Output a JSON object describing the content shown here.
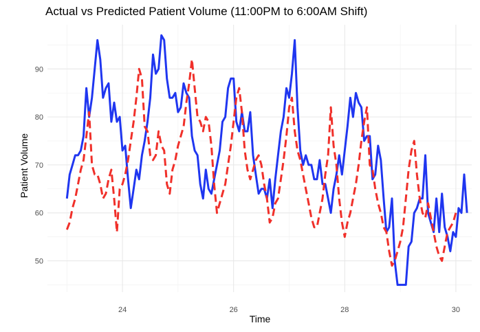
{
  "chart_data": {
    "type": "line",
    "title": "Actual vs Predicted Patient Volume (11:00PM to 6:00AM Shift)",
    "xlabel": "Time",
    "ylabel": "Patient Volume",
    "xlim": [
      22.7,
      30.2
    ],
    "ylim": [
      42.5,
      97.5
    ],
    "x_ticks": [
      24,
      26,
      28,
      30
    ],
    "y_ticks": [
      50,
      60,
      70,
      80,
      90
    ],
    "grid": true,
    "legend": "none",
    "series": [
      {
        "color": "#1f36f0",
        "style": "solid",
        "points": [
          [
            23.0,
            63
          ],
          [
            23.05,
            68
          ],
          [
            23.1,
            70
          ],
          [
            23.15,
            72
          ],
          [
            23.2,
            72
          ],
          [
            23.25,
            73
          ],
          [
            23.3,
            76
          ],
          [
            23.35,
            86
          ],
          [
            23.4,
            80
          ],
          [
            23.45,
            84
          ],
          [
            23.5,
            90
          ],
          [
            23.55,
            96
          ],
          [
            23.6,
            92
          ],
          [
            23.65,
            84
          ],
          [
            23.7,
            86
          ],
          [
            23.75,
            87
          ],
          [
            23.8,
            79
          ],
          [
            23.85,
            83
          ],
          [
            23.9,
            79
          ],
          [
            23.95,
            80
          ],
          [
            24.0,
            73
          ],
          [
            24.05,
            74
          ],
          [
            24.1,
            67
          ],
          [
            24.15,
            61
          ],
          [
            24.2,
            65
          ],
          [
            24.25,
            69
          ],
          [
            24.3,
            67
          ],
          [
            24.35,
            72
          ],
          [
            24.4,
            75
          ],
          [
            24.45,
            79
          ],
          [
            24.5,
            84
          ],
          [
            24.55,
            93
          ],
          [
            24.6,
            89
          ],
          [
            24.65,
            90
          ],
          [
            24.7,
            97
          ],
          [
            24.75,
            96
          ],
          [
            24.8,
            88
          ],
          [
            24.85,
            84
          ],
          [
            24.9,
            84
          ],
          [
            24.95,
            85
          ],
          [
            25.0,
            81
          ],
          [
            25.05,
            82
          ],
          [
            25.1,
            87
          ],
          [
            25.15,
            85
          ],
          [
            25.2,
            84
          ],
          [
            25.25,
            76
          ],
          [
            25.3,
            73
          ],
          [
            25.35,
            72
          ],
          [
            25.4,
            66
          ],
          [
            25.45,
            63
          ],
          [
            25.5,
            69
          ],
          [
            25.55,
            65
          ],
          [
            25.6,
            64
          ],
          [
            25.65,
            67
          ],
          [
            25.7,
            70
          ],
          [
            25.75,
            73
          ],
          [
            25.8,
            79
          ],
          [
            25.85,
            80
          ],
          [
            25.9,
            86
          ],
          [
            25.95,
            88
          ],
          [
            26.0,
            88
          ],
          [
            26.05,
            79
          ],
          [
            26.1,
            77
          ],
          [
            26.15,
            81
          ],
          [
            26.2,
            77
          ],
          [
            26.25,
            77
          ],
          [
            26.3,
            81
          ],
          [
            26.35,
            72
          ],
          [
            26.4,
            68
          ],
          [
            26.45,
            64
          ],
          [
            26.5,
            65
          ],
          [
            26.55,
            65
          ],
          [
            26.6,
            63
          ],
          [
            26.65,
            67
          ],
          [
            26.7,
            61
          ],
          [
            26.75,
            67
          ],
          [
            26.8,
            72
          ],
          [
            26.85,
            77
          ],
          [
            26.9,
            80
          ],
          [
            26.95,
            86
          ],
          [
            27.0,
            84
          ],
          [
            27.05,
            89
          ],
          [
            27.1,
            96
          ],
          [
            27.15,
            82
          ],
          [
            27.2,
            73
          ],
          [
            27.25,
            70
          ],
          [
            27.3,
            72
          ],
          [
            27.35,
            70
          ],
          [
            27.4,
            70
          ],
          [
            27.45,
            67
          ],
          [
            27.5,
            67
          ],
          [
            27.55,
            71
          ],
          [
            27.6,
            66
          ],
          [
            27.65,
            66
          ],
          [
            27.7,
            63
          ],
          [
            27.75,
            60
          ],
          [
            27.8,
            65
          ],
          [
            27.85,
            68
          ],
          [
            27.9,
            72
          ],
          [
            27.95,
            68
          ],
          [
            28.0,
            73
          ],
          [
            28.05,
            78
          ],
          [
            28.1,
            84
          ],
          [
            28.15,
            80
          ],
          [
            28.2,
            85
          ],
          [
            28.25,
            83
          ],
          [
            28.3,
            82
          ],
          [
            28.35,
            75
          ],
          [
            28.4,
            76
          ],
          [
            28.45,
            76
          ],
          [
            28.5,
            67
          ],
          [
            28.55,
            68
          ],
          [
            28.6,
            74
          ],
          [
            28.65,
            71
          ],
          [
            28.7,
            63
          ],
          [
            28.75,
            56
          ],
          [
            28.8,
            57
          ],
          [
            28.85,
            63
          ],
          [
            28.9,
            50
          ],
          [
            28.95,
            45
          ],
          [
            29.0,
            45
          ],
          [
            29.05,
            45
          ],
          [
            29.1,
            45
          ],
          [
            29.15,
            53
          ],
          [
            29.2,
            54
          ],
          [
            29.25,
            60
          ],
          [
            29.3,
            61
          ],
          [
            29.35,
            63
          ],
          [
            29.4,
            63
          ],
          [
            29.45,
            72
          ],
          [
            29.5,
            60
          ],
          [
            29.55,
            58
          ],
          [
            29.6,
            56
          ],
          [
            29.65,
            63
          ],
          [
            29.7,
            56
          ],
          [
            29.75,
            64
          ],
          [
            29.8,
            57
          ],
          [
            29.85,
            55
          ],
          [
            29.9,
            52
          ],
          [
            29.95,
            56
          ],
          [
            30.0,
            55
          ],
          [
            30.05,
            61
          ],
          [
            30.1,
            60
          ],
          [
            30.15,
            68
          ],
          [
            30.2,
            60
          ]
        ]
      },
      {
        "color": "#f0302a",
        "style": "dashed",
        "points": [
          [
            23.0,
            56.5
          ],
          [
            23.05,
            58
          ],
          [
            23.1,
            61
          ],
          [
            23.15,
            63
          ],
          [
            23.2,
            66
          ],
          [
            23.25,
            69
          ],
          [
            23.3,
            71
          ],
          [
            23.35,
            76
          ],
          [
            23.4,
            81
          ],
          [
            23.45,
            70
          ],
          [
            23.5,
            68
          ],
          [
            23.55,
            68
          ],
          [
            23.6,
            66
          ],
          [
            23.65,
            63
          ],
          [
            23.7,
            64
          ],
          [
            23.75,
            67
          ],
          [
            23.8,
            69
          ],
          [
            23.85,
            63
          ],
          [
            23.9,
            56
          ],
          [
            23.95,
            65
          ],
          [
            24.0,
            66
          ],
          [
            24.05,
            68
          ],
          [
            24.1,
            71
          ],
          [
            24.15,
            75
          ],
          [
            24.2,
            79
          ],
          [
            24.25,
            84
          ],
          [
            24.3,
            90
          ],
          [
            24.35,
            88
          ],
          [
            24.4,
            78
          ],
          [
            24.45,
            77
          ],
          [
            24.5,
            72
          ],
          [
            24.55,
            71
          ],
          [
            24.6,
            72
          ],
          [
            24.65,
            77
          ],
          [
            24.7,
            74
          ],
          [
            24.75,
            73
          ],
          [
            24.8,
            66
          ],
          [
            24.85,
            64
          ],
          [
            24.9,
            69
          ],
          [
            24.95,
            71
          ],
          [
            25.0,
            74
          ],
          [
            25.05,
            76
          ],
          [
            25.1,
            78
          ],
          [
            25.15,
            83
          ],
          [
            25.2,
            87
          ],
          [
            25.25,
            92
          ],
          [
            25.3,
            86
          ],
          [
            25.35,
            80
          ],
          [
            25.4,
            79
          ],
          [
            25.45,
            77
          ],
          [
            25.5,
            80
          ],
          [
            25.55,
            79
          ],
          [
            25.6,
            74
          ],
          [
            25.65,
            66
          ],
          [
            25.7,
            60
          ],
          [
            25.75,
            62
          ],
          [
            25.8,
            64
          ],
          [
            25.85,
            66
          ],
          [
            25.9,
            70
          ],
          [
            25.95,
            74
          ],
          [
            26.0,
            79
          ],
          [
            26.05,
            84
          ],
          [
            26.1,
            86
          ],
          [
            26.15,
            81
          ],
          [
            26.2,
            73
          ],
          [
            26.25,
            69
          ],
          [
            26.3,
            67
          ],
          [
            26.35,
            69
          ],
          [
            26.4,
            71
          ],
          [
            26.45,
            72
          ],
          [
            26.5,
            70
          ],
          [
            26.55,
            66
          ],
          [
            26.6,
            63
          ],
          [
            26.65,
            58
          ],
          [
            26.7,
            59
          ],
          [
            26.75,
            62
          ],
          [
            26.8,
            63
          ],
          [
            26.85,
            67
          ],
          [
            26.9,
            71
          ],
          [
            26.95,
            76
          ],
          [
            27.0,
            82
          ],
          [
            27.05,
            84
          ],
          [
            27.1,
            77
          ],
          [
            27.15,
            73
          ],
          [
            27.2,
            71
          ],
          [
            27.25,
            68
          ],
          [
            27.3,
            65
          ],
          [
            27.35,
            62
          ],
          [
            27.4,
            59
          ],
          [
            27.45,
            57
          ],
          [
            27.5,
            57
          ],
          [
            27.55,
            60
          ],
          [
            27.6,
            63
          ],
          [
            27.65,
            68
          ],
          [
            27.7,
            72
          ],
          [
            27.75,
            82
          ],
          [
            27.8,
            74
          ],
          [
            27.85,
            70
          ],
          [
            27.9,
            63
          ],
          [
            27.95,
            58
          ],
          [
            28.0,
            55
          ],
          [
            28.05,
            58
          ],
          [
            28.1,
            60
          ],
          [
            28.15,
            63
          ],
          [
            28.2,
            66
          ],
          [
            28.25,
            70
          ],
          [
            28.3,
            75
          ],
          [
            28.35,
            79
          ],
          [
            28.4,
            82
          ],
          [
            28.45,
            70
          ],
          [
            28.5,
            69
          ],
          [
            28.55,
            65
          ],
          [
            28.6,
            62
          ],
          [
            28.65,
            60
          ],
          [
            28.7,
            57
          ],
          [
            28.75,
            56
          ],
          [
            28.8,
            52
          ],
          [
            28.85,
            49
          ],
          [
            28.9,
            50
          ],
          [
            28.95,
            52
          ],
          [
            29.0,
            54
          ],
          [
            29.05,
            57
          ],
          [
            29.1,
            63
          ],
          [
            29.15,
            69
          ],
          [
            29.2,
            73
          ],
          [
            29.25,
            75
          ],
          [
            29.3,
            68
          ],
          [
            29.35,
            63
          ],
          [
            29.4,
            60
          ],
          [
            29.45,
            59
          ],
          [
            29.5,
            62
          ],
          [
            29.55,
            59
          ],
          [
            29.6,
            56
          ],
          [
            29.65,
            53
          ],
          [
            29.7,
            51
          ],
          [
            29.75,
            50
          ],
          [
            29.8,
            53
          ],
          [
            29.85,
            56
          ],
          [
            29.9,
            57
          ],
          [
            29.95,
            58
          ],
          [
            30.0,
            60
          ]
        ]
      }
    ]
  }
}
